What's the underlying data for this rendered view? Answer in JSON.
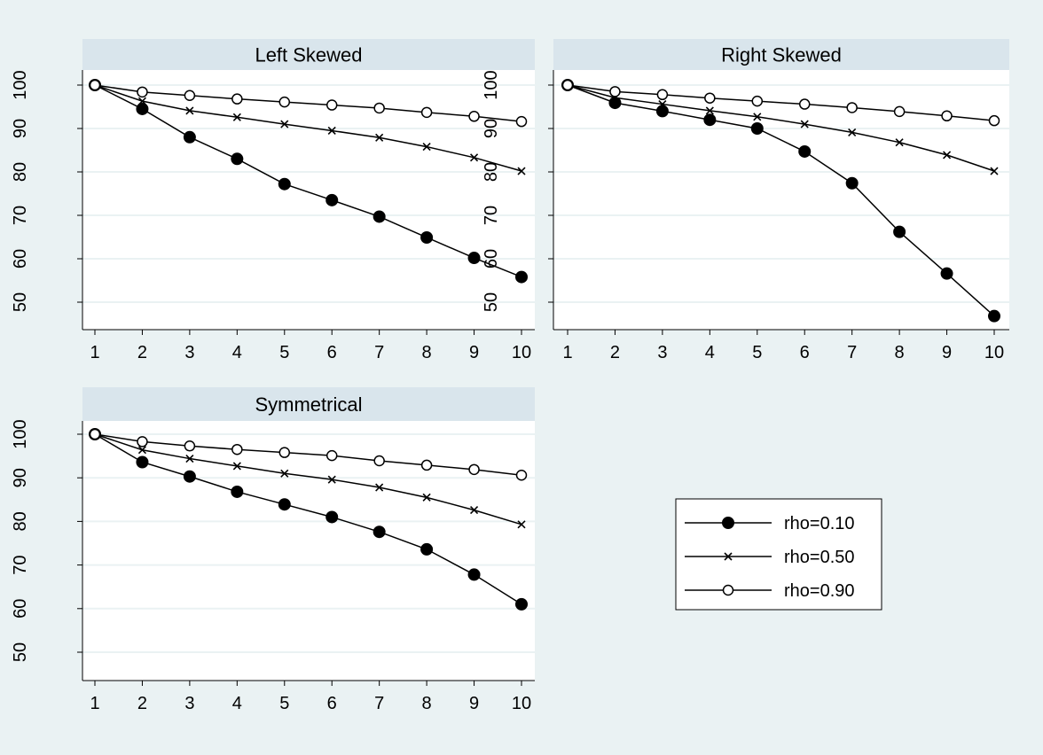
{
  "chart_data": [
    {
      "type": "line",
      "title": "Left Skewed",
      "x": [
        1,
        2,
        3,
        4,
        5,
        6,
        7,
        8,
        9,
        10
      ],
      "ylim": [
        45,
        102
      ],
      "yticks": [
        50,
        60,
        70,
        80,
        90,
        100
      ],
      "xticks": [
        1,
        2,
        3,
        4,
        5,
        6,
        7,
        8,
        9,
        10
      ],
      "grid": true,
      "series": [
        {
          "name": "rho=0.10",
          "marker": "filled-circle",
          "values": [
            100,
            94.5,
            88,
            83,
            77.2,
            73.5,
            69.7,
            64.9,
            60.2,
            55.8
          ]
        },
        {
          "name": "rho=0.50",
          "marker": "x",
          "values": [
            100,
            96.3,
            94.1,
            92.6,
            91.0,
            89.5,
            87.9,
            85.8,
            83.3,
            80.2
          ]
        },
        {
          "name": "rho=0.90",
          "marker": "hollow-circle",
          "values": [
            100,
            98.4,
            97.6,
            96.8,
            96.1,
            95.4,
            94.7,
            93.7,
            92.8,
            91.6
          ]
        }
      ]
    },
    {
      "type": "line",
      "title": "Right Skewed",
      "x": [
        1,
        2,
        3,
        4,
        5,
        6,
        7,
        8,
        9,
        10
      ],
      "ylim": [
        45,
        102
      ],
      "yticks": [
        50,
        60,
        70,
        80,
        90,
        100
      ],
      "xticks": [
        1,
        2,
        3,
        4,
        5,
        6,
        7,
        8,
        9,
        10
      ],
      "grid": true,
      "series": [
        {
          "name": "rho=0.10",
          "marker": "filled-circle",
          "values": [
            100,
            95.9,
            94.0,
            92.0,
            90.0,
            84.7,
            77.4,
            66.2,
            56.6,
            46.8
          ]
        },
        {
          "name": "rho=0.50",
          "marker": "x",
          "values": [
            100,
            97.1,
            95.6,
            94.1,
            92.7,
            91.0,
            89.1,
            86.8,
            83.9,
            80.2
          ]
        },
        {
          "name": "rho=0.90",
          "marker": "hollow-circle",
          "values": [
            100,
            98.5,
            97.8,
            97.0,
            96.3,
            95.6,
            94.8,
            93.9,
            92.9,
            91.8
          ]
        }
      ]
    },
    {
      "type": "line",
      "title": "Symmetrical",
      "x": [
        1,
        2,
        3,
        4,
        5,
        6,
        7,
        8,
        9,
        10
      ],
      "ylim": [
        45,
        102
      ],
      "yticks": [
        50,
        60,
        70,
        80,
        90,
        100
      ],
      "xticks": [
        1,
        2,
        3,
        4,
        5,
        6,
        7,
        8,
        9,
        10
      ],
      "grid": true,
      "series": [
        {
          "name": "rho=0.10",
          "marker": "filled-circle",
          "values": [
            100,
            93.6,
            90.3,
            86.8,
            83.9,
            81.0,
            77.6,
            73.6,
            67.8,
            61.0
          ]
        },
        {
          "name": "rho=0.50",
          "marker": "x",
          "values": [
            100,
            96.4,
            94.4,
            92.7,
            91.0,
            89.6,
            87.8,
            85.5,
            82.6,
            79.3
          ]
        },
        {
          "name": "rho=0.90",
          "marker": "hollow-circle",
          "values": [
            100,
            98.3,
            97.3,
            96.5,
            95.8,
            95.1,
            93.9,
            92.9,
            91.9,
            90.6
          ]
        }
      ]
    }
  ],
  "legend": {
    "position": "bottom-right",
    "items": [
      {
        "label": "rho=0.10",
        "marker": "filled-circle"
      },
      {
        "label": "rho=0.50",
        "marker": "x"
      },
      {
        "label": "rho=0.90",
        "marker": "hollow-circle"
      }
    ]
  },
  "colors": {
    "background": "#eaf2f3",
    "plot_area": "#ffffff",
    "title_strip": "#d9e5ec",
    "gridline": "#eaf2f3",
    "line": "#000000"
  }
}
